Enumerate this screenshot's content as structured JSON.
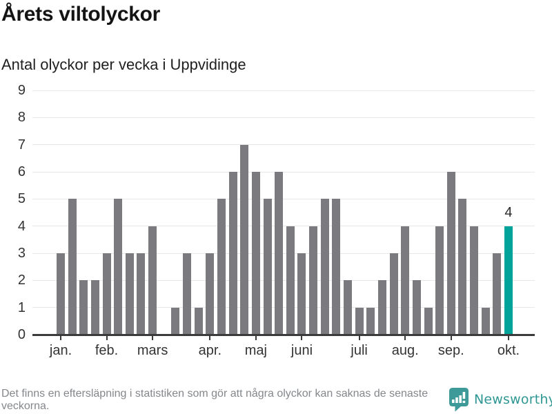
{
  "header": {
    "title": "Årets viltolyckor",
    "subtitle": "Antal olyckor per vecka i Uppvidinge"
  },
  "chart_data": {
    "type": "bar",
    "title": "Årets viltolyckor",
    "subtitle": "Antal olyckor per vecka i Uppvidinge",
    "xlabel": "",
    "ylabel": "",
    "x_unit": "vecka",
    "weeks": [
      1,
      2,
      3,
      4,
      5,
      6,
      7,
      8,
      9,
      10,
      11,
      12,
      13,
      14,
      15,
      16,
      17,
      18,
      19,
      20,
      21,
      22,
      23,
      24,
      25,
      26,
      27,
      28,
      29,
      30,
      31,
      32,
      33,
      34,
      35,
      36,
      37,
      38,
      39,
      40
    ],
    "values": [
      3,
      5,
      2,
      2,
      3,
      5,
      3,
      3,
      4,
      0,
      1,
      3,
      1,
      3,
      5,
      6,
      7,
      6,
      5,
      6,
      4,
      3,
      4,
      5,
      5,
      2,
      1,
      1,
      2,
      3,
      4,
      2,
      1,
      4,
      6,
      5,
      4,
      1,
      3,
      4
    ],
    "highlight_week": 40,
    "annotation": {
      "text": "4",
      "week": 40
    },
    "month_ticks": [
      {
        "label": "jan.",
        "week": 1
      },
      {
        "label": "feb.",
        "week": 5
      },
      {
        "label": "mars",
        "week": 9
      },
      {
        "label": "apr.",
        "week": 14
      },
      {
        "label": "maj",
        "week": 18
      },
      {
        "label": "juni",
        "week": 22
      },
      {
        "label": "juli",
        "week": 27
      },
      {
        "label": "aug.",
        "week": 31
      },
      {
        "label": "sep.",
        "week": 35
      },
      {
        "label": "okt.",
        "week": 40
      }
    ],
    "y_ticks": [
      0,
      1,
      2,
      3,
      4,
      5,
      6,
      7,
      8,
      9
    ],
    "ylim": [
      0,
      9
    ],
    "grid": "horizontal",
    "legend": "none",
    "colors": {
      "bar": "#7b7b7f",
      "highlight": "#00a399",
      "axis": "#3a3a3a",
      "gridline": "#e7e7e7",
      "tick_label": "#333333"
    }
  },
  "footer": {
    "note": "Det finns en eftersläpning i statistiken som gör att några olyckor kan saknas de senaste veckorna.",
    "logo_text": "Newsworthy",
    "logo_color": "#2f9793",
    "logo_icon_color": "#3d9a98"
  }
}
